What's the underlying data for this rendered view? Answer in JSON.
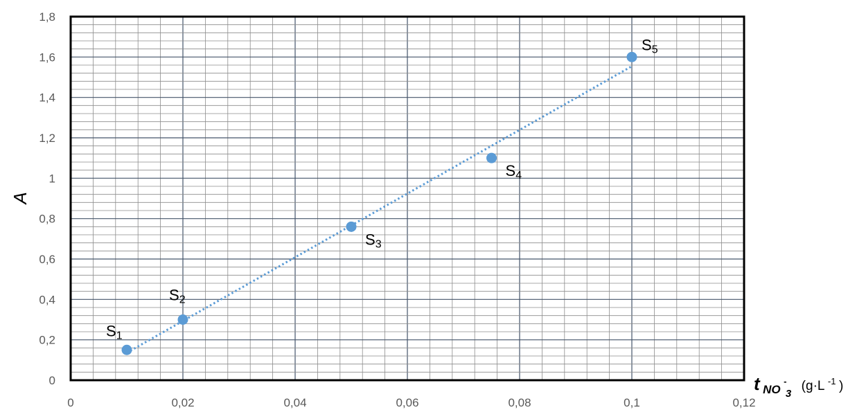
{
  "chart_data": {
    "type": "scatter",
    "title": "",
    "ylabel": "A",
    "xlabel": {
      "main": "t",
      "subscript": "NO",
      "sub_index": "3",
      "charge": "-",
      "unit": "(g·L",
      "unit_exp": "-1",
      "unit_close": ")"
    },
    "xlim": [
      0,
      0.12
    ],
    "ylim": [
      0,
      1.8
    ],
    "x_ticks": [
      "0",
      "0,02",
      "0,04",
      "0,06",
      "0,08",
      "0,1",
      "0,12"
    ],
    "y_ticks": [
      "0",
      "0,2",
      "0,4",
      "0,6",
      "0,8",
      "1",
      "1,2",
      "1,4",
      "1,6",
      "1,8"
    ],
    "grid": true,
    "legend": "none",
    "marker_color": "#5b9bd5",
    "trendline": {
      "style": "dotted",
      "color": "#5b9bd5",
      "x_start": 0.01,
      "x_end": 0.1
    },
    "points": [
      {
        "label": "S",
        "index": "1",
        "x": 0.01,
        "y": 0.15,
        "label_pos": "above-left"
      },
      {
        "label": "S",
        "index": "2",
        "x": 0.02,
        "y": 0.3,
        "label_pos": "above"
      },
      {
        "label": "S",
        "index": "3",
        "x": 0.05,
        "y": 0.76,
        "label_pos": "below-right"
      },
      {
        "label": "S",
        "index": "4",
        "x": 0.075,
        "y": 1.1,
        "label_pos": "below-right"
      },
      {
        "label": "S",
        "index": "5",
        "x": 0.1,
        "y": 1.6,
        "label_pos": "above-right"
      }
    ]
  }
}
